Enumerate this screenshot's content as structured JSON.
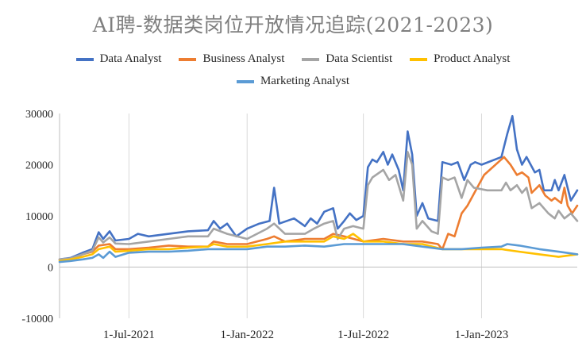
{
  "chart_data": {
    "type": "line",
    "title": "AI聘-数据类岗位开放情况追踪(2021-2023)",
    "xlabel": "",
    "ylabel": "",
    "x_range": [
      "2021-03-15",
      "2023-05-30"
    ],
    "ylim": [
      -10000,
      30000
    ],
    "y_ticks": [
      -10000,
      0,
      10000,
      20000,
      30000
    ],
    "y_tick_labels": [
      "-10000",
      "0",
      "10000",
      "20000",
      "30000"
    ],
    "x_ticks": [
      "2021-07-01",
      "2022-01-01",
      "2022-07-01",
      "2023-01-01"
    ],
    "x_tick_labels": [
      "1-Jul-2021",
      "1-Jan-2022",
      "1-Jul-2022",
      "1-Jan-2023"
    ],
    "grid": "vertical",
    "legend_position": "top",
    "series": [
      {
        "name": "Data Analyst",
        "color": "#4472c4",
        "points": [
          [
            "2021-03-15",
            1500
          ],
          [
            "2021-04-01",
            1800
          ],
          [
            "2021-04-20",
            2800
          ],
          [
            "2021-05-05",
            3500
          ],
          [
            "2021-05-15",
            6800
          ],
          [
            "2021-05-22",
            5500
          ],
          [
            "2021-06-01",
            7000
          ],
          [
            "2021-06-10",
            5200
          ],
          [
            "2021-07-01",
            5500
          ],
          [
            "2021-07-15",
            6500
          ],
          [
            "2021-08-01",
            6000
          ],
          [
            "2021-09-01",
            6500
          ],
          [
            "2021-10-01",
            7000
          ],
          [
            "2021-11-01",
            7200
          ],
          [
            "2021-11-10",
            9000
          ],
          [
            "2021-11-20",
            7500
          ],
          [
            "2021-12-01",
            8500
          ],
          [
            "2021-12-15",
            6000
          ],
          [
            "2022-01-01",
            7500
          ],
          [
            "2022-01-20",
            8500
          ],
          [
            "2022-02-05",
            9000
          ],
          [
            "2022-02-12",
            15500
          ],
          [
            "2022-02-20",
            8500
          ],
          [
            "2022-03-15",
            9500
          ],
          [
            "2022-04-01",
            8000
          ],
          [
            "2022-04-10",
            9500
          ],
          [
            "2022-04-20",
            8500
          ],
          [
            "2022-05-01",
            10800
          ],
          [
            "2022-05-15",
            11500
          ],
          [
            "2022-05-22",
            7500
          ],
          [
            "2022-06-01",
            9000
          ],
          [
            "2022-06-10",
            10500
          ],
          [
            "2022-06-20",
            9200
          ],
          [
            "2022-07-01",
            10000
          ],
          [
            "2022-07-08",
            19500
          ],
          [
            "2022-07-15",
            21000
          ],
          [
            "2022-07-22",
            20500
          ],
          [
            "2022-08-01",
            22500
          ],
          [
            "2022-08-08",
            20000
          ],
          [
            "2022-08-15",
            22000
          ],
          [
            "2022-08-25",
            19000
          ],
          [
            "2022-09-01",
            15000
          ],
          [
            "2022-09-08",
            26500
          ],
          [
            "2022-09-15",
            22000
          ],
          [
            "2022-09-22",
            10000
          ],
          [
            "2022-10-01",
            12500
          ],
          [
            "2022-10-10",
            9500
          ],
          [
            "2022-10-25",
            9000
          ],
          [
            "2022-11-01",
            20500
          ],
          [
            "2022-11-15",
            20000
          ],
          [
            "2022-11-25",
            20500
          ],
          [
            "2022-12-05",
            17000
          ],
          [
            "2022-12-15",
            20000
          ],
          [
            "2022-12-22",
            20500
          ],
          [
            "2023-01-01",
            20000
          ],
          [
            "2023-02-01",
            21500
          ],
          [
            "2023-02-10",
            26000
          ],
          [
            "2023-02-18",
            29500
          ],
          [
            "2023-02-25",
            23000
          ],
          [
            "2023-03-05",
            20000
          ],
          [
            "2023-03-12",
            21500
          ],
          [
            "2023-03-25",
            18500
          ],
          [
            "2023-04-01",
            19000
          ],
          [
            "2023-04-08",
            15000
          ],
          [
            "2023-04-20",
            15000
          ],
          [
            "2023-04-25",
            17000
          ],
          [
            "2023-05-01",
            15000
          ],
          [
            "2023-05-10",
            18000
          ],
          [
            "2023-05-20",
            13000
          ],
          [
            "2023-05-30",
            15000
          ]
        ]
      },
      {
        "name": "Business Analyst",
        "color": "#ed7d31",
        "points": [
          [
            "2021-03-15",
            1500
          ],
          [
            "2021-04-01",
            1500
          ],
          [
            "2021-04-20",
            2500
          ],
          [
            "2021-05-05",
            3000
          ],
          [
            "2021-05-15",
            4200
          ],
          [
            "2021-06-01",
            4500
          ],
          [
            "2021-06-10",
            3500
          ],
          [
            "2021-07-01",
            3500
          ],
          [
            "2021-08-01",
            3800
          ],
          [
            "2021-09-01",
            4200
          ],
          [
            "2021-10-01",
            4000
          ],
          [
            "2021-11-01",
            4000
          ],
          [
            "2021-11-10",
            5000
          ],
          [
            "2021-12-01",
            4500
          ],
          [
            "2022-01-01",
            4500
          ],
          [
            "2022-02-01",
            5500
          ],
          [
            "2022-02-12",
            6000
          ],
          [
            "2022-03-01",
            5000
          ],
          [
            "2022-04-01",
            5500
          ],
          [
            "2022-05-01",
            5500
          ],
          [
            "2022-05-15",
            6500
          ],
          [
            "2022-06-01",
            6000
          ],
          [
            "2022-07-01",
            5000
          ],
          [
            "2022-08-01",
            5500
          ],
          [
            "2022-09-01",
            5000
          ],
          [
            "2022-10-01",
            5000
          ],
          [
            "2022-10-25",
            4500
          ],
          [
            "2022-11-01",
            3500
          ],
          [
            "2022-11-10",
            6500
          ],
          [
            "2022-11-20",
            6000
          ],
          [
            "2022-12-01",
            10500
          ],
          [
            "2022-12-10",
            12000
          ],
          [
            "2023-01-05",
            18000
          ],
          [
            "2023-02-05",
            21500
          ],
          [
            "2023-02-15",
            20000
          ],
          [
            "2023-02-25",
            18000
          ],
          [
            "2023-03-05",
            18500
          ],
          [
            "2023-03-15",
            17500
          ],
          [
            "2023-03-20",
            14500
          ],
          [
            "2023-04-01",
            16000
          ],
          [
            "2023-04-10",
            14000
          ],
          [
            "2023-04-20",
            13000
          ],
          [
            "2023-04-25",
            13500
          ],
          [
            "2023-05-05",
            12500
          ],
          [
            "2023-05-10",
            15500
          ],
          [
            "2023-05-15",
            12000
          ],
          [
            "2023-05-22",
            10500
          ],
          [
            "2023-05-30",
            12000
          ]
        ]
      },
      {
        "name": "Data Scientist",
        "color": "#a5a5a5",
        "points": [
          [
            "2021-03-15",
            1500
          ],
          [
            "2021-04-01",
            1700
          ],
          [
            "2021-04-20",
            2500
          ],
          [
            "2021-05-05",
            3200
          ],
          [
            "2021-05-15",
            5800
          ],
          [
            "2021-05-22",
            4800
          ],
          [
            "2021-06-01",
            5800
          ],
          [
            "2021-06-10",
            4600
          ],
          [
            "2021-07-01",
            4500
          ],
          [
            "2021-08-01",
            5000
          ],
          [
            "2021-09-01",
            5500
          ],
          [
            "2021-10-01",
            6000
          ],
          [
            "2021-11-01",
            6000
          ],
          [
            "2021-11-10",
            7500
          ],
          [
            "2021-12-01",
            6500
          ],
          [
            "2022-01-01",
            5500
          ],
          [
            "2022-02-01",
            7500
          ],
          [
            "2022-02-12",
            8500
          ],
          [
            "2022-03-01",
            6500
          ],
          [
            "2022-04-01",
            6500
          ],
          [
            "2022-04-15",
            7500
          ],
          [
            "2022-05-01",
            8500
          ],
          [
            "2022-05-15",
            9000
          ],
          [
            "2022-05-22",
            5500
          ],
          [
            "2022-06-01",
            7500
          ],
          [
            "2022-06-15",
            8000
          ],
          [
            "2022-07-01",
            7500
          ],
          [
            "2022-07-08",
            16000
          ],
          [
            "2022-07-15",
            17500
          ],
          [
            "2022-08-01",
            19000
          ],
          [
            "2022-08-10",
            17000
          ],
          [
            "2022-08-20",
            18000
          ],
          [
            "2022-09-01",
            13000
          ],
          [
            "2022-09-08",
            22500
          ],
          [
            "2022-09-15",
            20000
          ],
          [
            "2022-09-22",
            7500
          ],
          [
            "2022-10-01",
            9000
          ],
          [
            "2022-10-15",
            7000
          ],
          [
            "2022-10-25",
            6500
          ],
          [
            "2022-11-01",
            17500
          ],
          [
            "2022-11-10",
            17000
          ],
          [
            "2022-11-20",
            17500
          ],
          [
            "2022-12-01",
            13500
          ],
          [
            "2022-12-10",
            17000
          ],
          [
            "2022-12-20",
            15500
          ],
          [
            "2023-01-10",
            15000
          ],
          [
            "2023-02-01",
            15000
          ],
          [
            "2023-02-08",
            16500
          ],
          [
            "2023-02-15",
            15000
          ],
          [
            "2023-02-25",
            16000
          ],
          [
            "2023-03-05",
            14500
          ],
          [
            "2023-03-12",
            15500
          ],
          [
            "2023-03-20",
            11500
          ],
          [
            "2023-04-01",
            12500
          ],
          [
            "2023-04-15",
            10500
          ],
          [
            "2023-04-25",
            9500
          ],
          [
            "2023-05-01",
            11000
          ],
          [
            "2023-05-10",
            9500
          ],
          [
            "2023-05-20",
            10500
          ],
          [
            "2023-05-30",
            9000
          ]
        ]
      },
      {
        "name": "Product Analyst",
        "color": "#ffc000",
        "points": [
          [
            "2021-03-15",
            1200
          ],
          [
            "2021-04-01",
            1500
          ],
          [
            "2021-04-20",
            2000
          ],
          [
            "2021-05-05",
            2500
          ],
          [
            "2021-05-15",
            3500
          ],
          [
            "2021-06-01",
            4000
          ],
          [
            "2021-06-10",
            3000
          ],
          [
            "2021-07-01",
            3200
          ],
          [
            "2021-08-01",
            3500
          ],
          [
            "2021-09-01",
            3500
          ],
          [
            "2021-10-01",
            3800
          ],
          [
            "2021-11-01",
            4000
          ],
          [
            "2021-11-10",
            4500
          ],
          [
            "2021-12-01",
            4000
          ],
          [
            "2022-01-01",
            4000
          ],
          [
            "2022-02-01",
            4500
          ],
          [
            "2022-03-01",
            5000
          ],
          [
            "2022-04-01",
            5000
          ],
          [
            "2022-05-01",
            5000
          ],
          [
            "2022-05-15",
            6000
          ],
          [
            "2022-06-01",
            5500
          ],
          [
            "2022-06-15",
            6500
          ],
          [
            "2022-07-01",
            5000
          ],
          [
            "2022-08-01",
            5000
          ],
          [
            "2022-09-01",
            4500
          ],
          [
            "2022-10-01",
            4500
          ],
          [
            "2022-11-01",
            3500
          ],
          [
            "2022-12-01",
            3500
          ],
          [
            "2023-01-01",
            3500
          ],
          [
            "2023-02-01",
            3500
          ],
          [
            "2023-03-01",
            3000
          ],
          [
            "2023-04-01",
            2500
          ],
          [
            "2023-05-01",
            2000
          ],
          [
            "2023-05-30",
            2500
          ]
        ]
      },
      {
        "name": "Marketing Analyst",
        "color": "#5b9bd5",
        "points": [
          [
            "2021-03-15",
            1000
          ],
          [
            "2021-04-01",
            1200
          ],
          [
            "2021-04-20",
            1500
          ],
          [
            "2021-05-05",
            1800
          ],
          [
            "2021-05-15",
            2500
          ],
          [
            "2021-05-22",
            1800
          ],
          [
            "2021-06-01",
            3000
          ],
          [
            "2021-06-10",
            2000
          ],
          [
            "2021-07-01",
            2800
          ],
          [
            "2021-08-01",
            3000
          ],
          [
            "2021-09-01",
            3000
          ],
          [
            "2021-10-01",
            3200
          ],
          [
            "2021-11-01",
            3500
          ],
          [
            "2021-12-01",
            3500
          ],
          [
            "2022-01-01",
            3500
          ],
          [
            "2022-02-01",
            4000
          ],
          [
            "2022-03-01",
            4000
          ],
          [
            "2022-04-01",
            4200
          ],
          [
            "2022-05-01",
            4000
          ],
          [
            "2022-06-01",
            4500
          ],
          [
            "2022-07-01",
            4500
          ],
          [
            "2022-08-01",
            4500
          ],
          [
            "2022-09-01",
            4500
          ],
          [
            "2022-10-01",
            4000
          ],
          [
            "2022-11-01",
            3500
          ],
          [
            "2022-12-01",
            3500
          ],
          [
            "2023-01-01",
            3800
          ],
          [
            "2023-02-01",
            4000
          ],
          [
            "2023-02-10",
            4500
          ],
          [
            "2023-03-01",
            4200
          ],
          [
            "2023-04-01",
            3500
          ],
          [
            "2023-05-01",
            3000
          ],
          [
            "2023-05-30",
            2500
          ]
        ]
      }
    ]
  }
}
